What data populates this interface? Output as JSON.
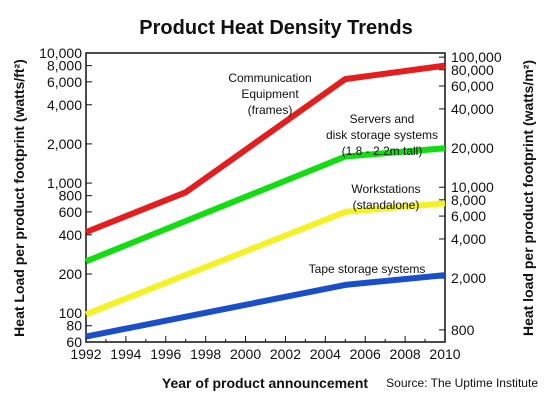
{
  "chart_data": {
    "type": "line",
    "title": "Product Heat Density Trends",
    "xlabel": "Year of product announcement",
    "ylabel_left": "Heat Load per product footprint (watts/ft²)",
    "ylabel_right": "Heat load per product footprint (watts/m²)",
    "source": "Source: The Uptime Institute",
    "xlim": [
      1992,
      2010
    ],
    "x_ticks": [
      "1992",
      "1994",
      "1996",
      "1998",
      "2000",
      "2002",
      "2004",
      "2006",
      "2008",
      "2010"
    ],
    "y_left": {
      "scale": "log",
      "lim": [
        60,
        10000
      ],
      "ticks": [
        60,
        80,
        100,
        200,
        400,
        600,
        800,
        1000,
        2000,
        4000,
        6000,
        8000,
        10000
      ],
      "tick_labels": [
        "60",
        "80",
        "100",
        "200",
        "400",
        "600",
        "800",
        "1,000",
        "2,000",
        "4,000",
        "6,000",
        "8,000",
        "10,000"
      ]
    },
    "y_right": {
      "scale": "log",
      "lim": [
        645.6,
        107640
      ],
      "ticks": [
        800,
        2000,
        4000,
        6000,
        8000,
        10000,
        20000,
        40000,
        60000,
        80000,
        100000
      ],
      "tick_labels": [
        "800",
        "2,000",
        "4,000",
        "6,000",
        "8,000",
        "10,000",
        "20,000",
        "40,000",
        "60,000",
        "80,000",
        "100,000"
      ]
    },
    "grid": false,
    "series": [
      {
        "color": "#e41e1e",
        "points": [
          [
            1992,
            420
          ],
          [
            1997,
            850
          ],
          [
            2005,
            6300
          ],
          [
            2010,
            8000
          ]
        ]
      },
      {
        "color": "#11dd11",
        "points": [
          [
            1992,
            250
          ],
          [
            2005,
            1600
          ],
          [
            2010,
            1850
          ]
        ]
      },
      {
        "color": "#f2f226",
        "points": [
          [
            1992,
            98
          ],
          [
            2005,
            600
          ],
          [
            2010,
            700
          ]
        ]
      },
      {
        "color": "#1a4fc9",
        "points": [
          [
            1992,
            66
          ],
          [
            2005,
            165
          ],
          [
            2010,
            196
          ]
        ]
      }
    ],
    "annotations": [
      {
        "lines": [
          "Communication",
          "Equipment",
          "(frames)"
        ]
      },
      {
        "lines": [
          "Servers and",
          "disk storage systems",
          "(1.8 - 2.2m tall)"
        ]
      },
      {
        "lines": [
          "Workstations",
          "(standalone)"
        ]
      },
      {
        "lines": [
          "Tape storage systems"
        ]
      }
    ]
  }
}
